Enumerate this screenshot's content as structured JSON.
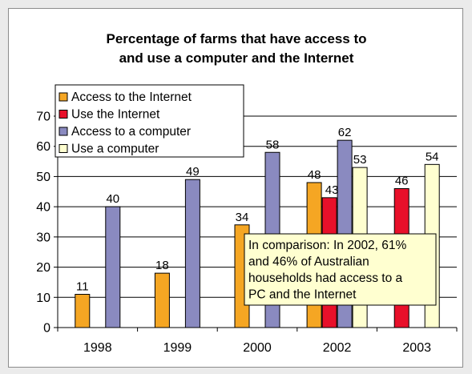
{
  "chart_data": {
    "type": "bar",
    "title": [
      "Percentage of farms that have access to",
      "and use a computer and the Internet"
    ],
    "categories": [
      "1998",
      "1999",
      "2000",
      "2002",
      "2003"
    ],
    "ylim": [
      0,
      70
    ],
    "yticks": [
      0,
      10,
      20,
      30,
      40,
      50,
      60,
      70
    ],
    "grid": true,
    "legend_position": "top-left",
    "series": [
      {
        "name": "Access to the Internet",
        "color": "#f5a623",
        "values": [
          11,
          18,
          34,
          48,
          null
        ]
      },
      {
        "name": "Use the Internet",
        "color": "#e8102a",
        "values": [
          null,
          null,
          null,
          43,
          46
        ]
      },
      {
        "name": "Access to a computer",
        "color": "#8a8ac0",
        "values": [
          40,
          49,
          58,
          62,
          null
        ]
      },
      {
        "name": "Use a computer",
        "color": "#ffffd0",
        "values": [
          null,
          null,
          null,
          53,
          54
        ]
      }
    ],
    "annotation": [
      "In comparison: In 2002, 61%",
      "and 46% of Australian",
      "households had access to a",
      "PC and the Internet"
    ]
  }
}
